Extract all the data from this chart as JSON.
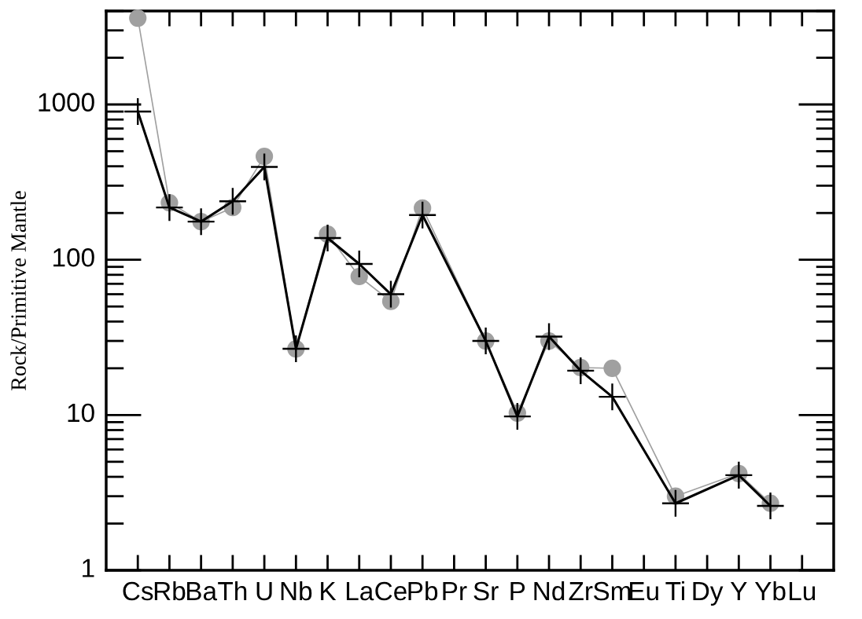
{
  "chart_data": {
    "type": "line",
    "ylabel": "Rock/Primitive Mantle",
    "log": true,
    "categories": [
      "Cs",
      "Rb",
      "Ba",
      "Th",
      "U",
      "Nb",
      "K",
      "La",
      "Ce",
      "Pb",
      "Pr",
      "Sr",
      "P",
      "Nd",
      "Zr",
      "Sm",
      "Eu",
      "Ti",
      "Dy",
      "Y",
      "Yb",
      "Lu"
    ],
    "ylim": [
      1,
      4000
    ],
    "yticks": [
      1,
      10,
      100,
      1000
    ],
    "grid": false,
    "legend": false,
    "series": [
      {
        "color": "#a0a0a0",
        "marker": "circle",
        "values": [
          3600,
          233,
          176,
          217,
          463,
          26.7,
          146,
          78,
          54,
          215,
          null,
          30,
          10.3,
          30,
          20.2,
          20,
          null,
          3.0,
          null,
          4.2,
          2.7,
          null
        ]
      },
      {
        "color": "#000000",
        "marker": "cross",
        "values": [
          900,
          217,
          176,
          238,
          396,
          26.7,
          138,
          94,
          60,
          194,
          null,
          30,
          9.8,
          32,
          19.3,
          13.1,
          null,
          2.7,
          null,
          4.1,
          2.6,
          null
        ]
      }
    ]
  }
}
